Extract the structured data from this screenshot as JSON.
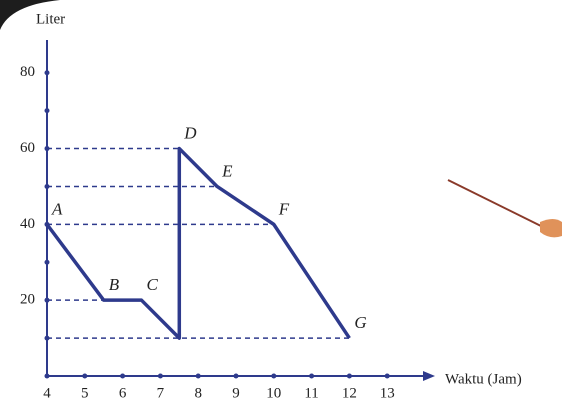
{
  "chart_data": {
    "type": "line",
    "y_label": "Liter",
    "x_label": "Waktu (Jam)",
    "x": [
      4,
      5.5,
      6.5,
      7.5,
      7.5,
      8.5,
      10,
      12
    ],
    "values": [
      40,
      20,
      20,
      10,
      60,
      50,
      40,
      10
    ],
    "point_labels": [
      "A",
      "B",
      "C",
      null,
      "D",
      "E",
      "F",
      "G"
    ],
    "color": "#2e3a8c",
    "xlim": [
      4,
      14
    ],
    "ylim": [
      0,
      86
    ],
    "xticks": [
      4,
      5,
      6,
      7,
      8,
      9,
      10,
      11,
      12,
      13
    ],
    "yticks": [
      20,
      40,
      60,
      80
    ],
    "yticks_minor": [
      10,
      30,
      50,
      70
    ],
    "guide_lines": true
  }
}
